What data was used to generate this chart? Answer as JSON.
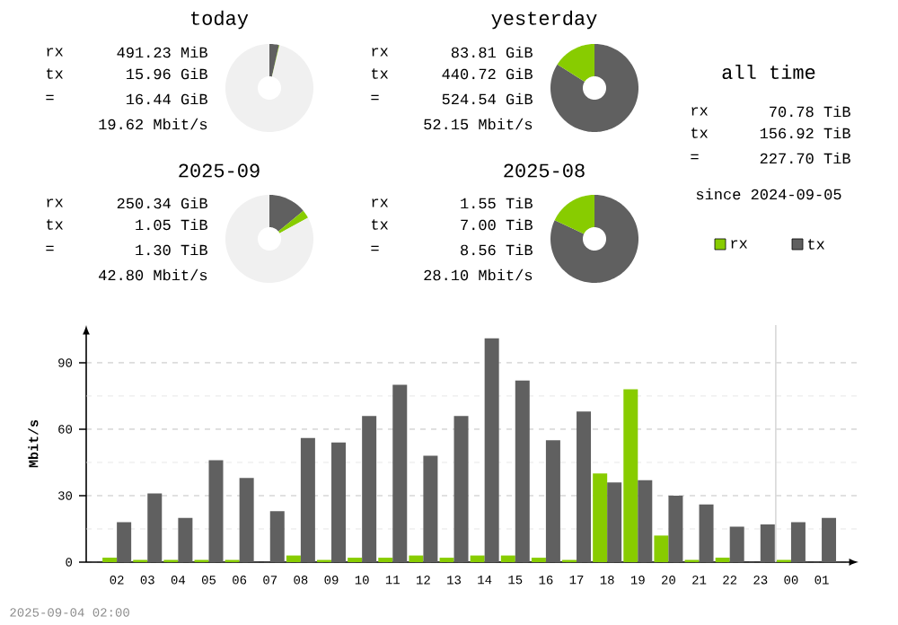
{
  "chart_data": [
    {
      "type": "donut",
      "title": "today",
      "categories": [
        null,
        null,
        null
      ],
      "values": [
        3.5,
        0.2,
        96.3
      ],
      "colors": [
        "#606060",
        "#88cc00",
        "#f0f0f0"
      ],
      "annotations": [
        "rx",
        "491.23 MiB",
        "tx",
        "15.96 GiB",
        "=",
        "16.44 GiB",
        "19.62 Mbit/s"
      ]
    },
    {
      "type": "donut",
      "title": "yesterday",
      "categories": [
        null,
        null
      ],
      "values": [
        84,
        16
      ],
      "colors": [
        "#606060",
        "#88cc00"
      ],
      "annotations": [
        "rx",
        "83.81 GiB",
        "tx",
        "440.72 GiB",
        "=",
        "524.54 GiB",
        "52.15 Mbit/s"
      ]
    },
    {
      "type": "donut",
      "title": "2025-09",
      "categories": [
        null,
        null,
        null
      ],
      "values": [
        14,
        3,
        83
      ],
      "colors": [
        "#606060",
        "#88cc00",
        "#f0f0f0"
      ],
      "annotations": [
        "rx",
        "250.34 GiB",
        "tx",
        "1.05 TiB",
        "=",
        "1.30 TiB",
        "42.80 Mbit/s"
      ]
    },
    {
      "type": "donut",
      "title": "2025-08",
      "categories": [
        null,
        null
      ],
      "values": [
        82,
        18
      ],
      "colors": [
        "#606060",
        "#88cc00"
      ],
      "annotations": [
        "rx",
        "1.55 TiB",
        "tx",
        "7.00 TiB",
        "=",
        "8.56 TiB",
        "28.10 Mbit/s"
      ]
    },
    {
      "type": "other",
      "title": "all time",
      "annotations": [
        "rx",
        "70.78 TiB",
        "tx",
        "156.92 TiB",
        "=",
        "227.70 TiB",
        "since 2024-09-05"
      ]
    },
    {
      "type": "bar",
      "ylabel": "Mbit/s",
      "categories": [
        "02",
        "03",
        "04",
        "05",
        "06",
        "07",
        "08",
        "09",
        "10",
        "11",
        "12",
        "13",
        "14",
        "15",
        "16",
        "17",
        "18",
        "19",
        "20",
        "21",
        "22",
        "23",
        "00",
        "01"
      ],
      "series": [
        {
          "name": "rx",
          "color": "#88cc00",
          "values": [
            2,
            1,
            1,
            1,
            1,
            0,
            3,
            1,
            2,
            2,
            3,
            2,
            3,
            3,
            2,
            1,
            40,
            78,
            12,
            1,
            2,
            0,
            1,
            0
          ]
        },
        {
          "name": "tx",
          "color": "#606060",
          "values": [
            18,
            31,
            20,
            46,
            38,
            23,
            56,
            54,
            66,
            80,
            48,
            66,
            101,
            82,
            55,
            68,
            36,
            37,
            30,
            26,
            16,
            17,
            18,
            20
          ]
        }
      ],
      "ylim": [
        0,
        107
      ],
      "yticks": [
        0,
        {
          "value": 15,
          "label": null
        },
        30,
        {
          "value": 45,
          "label": null
        },
        60,
        {
          "value": 75,
          "label": null
        },
        90
      ],
      "grid": "y",
      "legend": "top right",
      "ref_lines": [
        {
          "axis": "x",
          "value": "00",
          "color": "#d8d8d8"
        }
      ],
      "annotations": [
        "2025-09-04 02:00"
      ]
    }
  ]
}
